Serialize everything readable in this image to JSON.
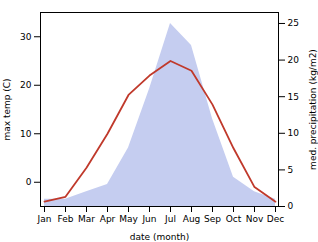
{
  "chart_data": {
    "type": "line",
    "categories": [
      "Jan",
      "Feb",
      "Mar",
      "Apr",
      "May",
      "Jun",
      "Jul",
      "Aug",
      "Sep",
      "Oct",
      "Nov",
      "Dec"
    ],
    "xlabel": "date (month)",
    "ylabel": "max temp (C)",
    "y2label": "med. precipitation (kg/m2)",
    "ylim": [
      -5,
      35
    ],
    "yticks": [
      0,
      10,
      20,
      30
    ],
    "y2lim": [
      0,
      26.5
    ],
    "y2ticks": [
      0,
      5,
      10,
      15,
      20,
      25
    ],
    "grid": false,
    "series": [
      {
        "type": "area",
        "axis": "y2",
        "color": "#c5cdf0",
        "values": [
          1,
          1,
          2,
          3,
          8,
          16,
          25,
          22,
          12,
          4,
          2,
          1
        ]
      },
      {
        "type": "line",
        "color": "#c0392b",
        "values": [
          -4,
          -3,
          3,
          10,
          18,
          22,
          25,
          23,
          16,
          7,
          -1,
          -4
        ]
      }
    ]
  }
}
